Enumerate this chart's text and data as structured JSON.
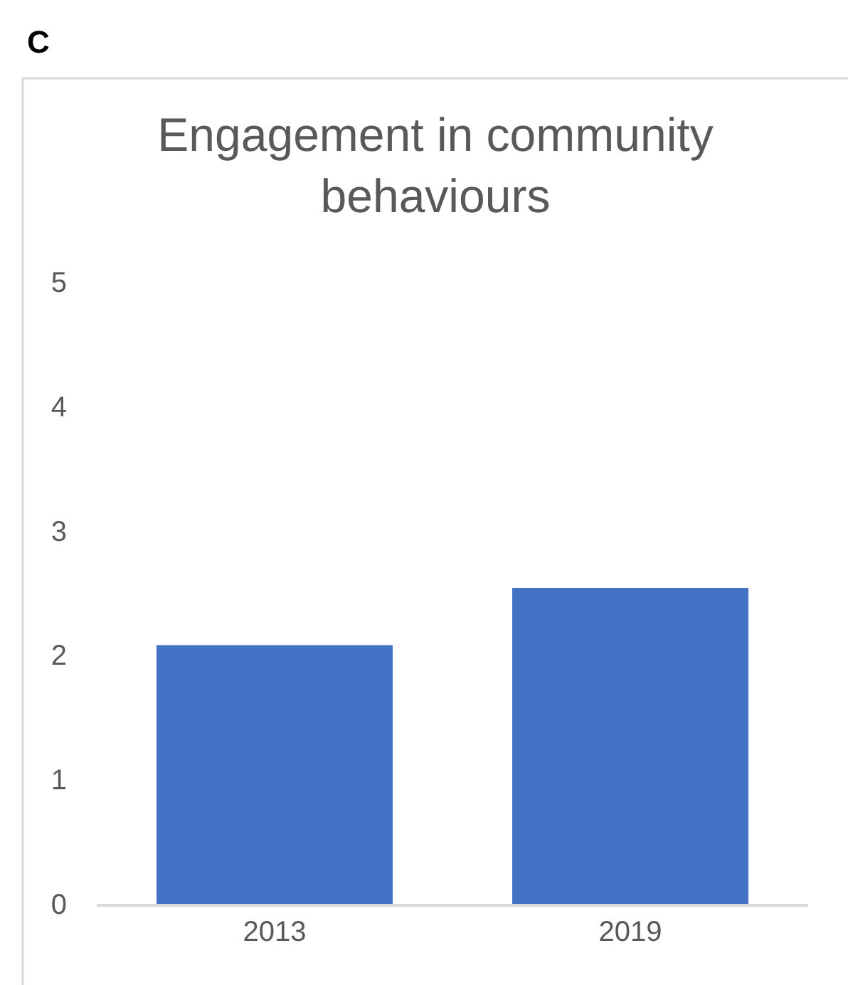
{
  "chart_data": {
    "type": "bar",
    "title": "Engagement in community behaviours",
    "categories": [
      "2013",
      "2019"
    ],
    "values": [
      2.08,
      2.54
    ],
    "color": "#4472c4",
    "ylim": [
      0,
      5
    ],
    "yticks": [
      0,
      1,
      2,
      3,
      4,
      5
    ],
    "annotations": [
      "C"
    ]
  }
}
